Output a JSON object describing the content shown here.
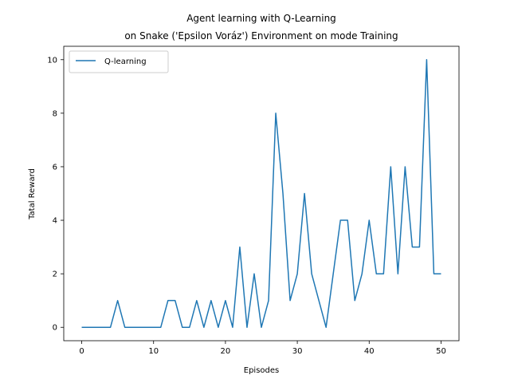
{
  "chart_data": {
    "type": "line",
    "title": "Agent learning with Q-Learning",
    "subtitle": "on Snake ('Epsilon Voráz') Environment on mode Training",
    "xlabel": "Episodes",
    "ylabel": "Tatal Reward",
    "xlim": [
      -2.5,
      52.5
    ],
    "ylim": [
      -0.5,
      10.5
    ],
    "xticks": [
      0,
      10,
      20,
      30,
      40,
      50
    ],
    "yticks": [
      0,
      2,
      4,
      6,
      8,
      10
    ],
    "grid": false,
    "legend_position": "top-left",
    "series": [
      {
        "name": "Q-learning",
        "color": "#1f77b4",
        "x": [
          0,
          1,
          2,
          3,
          4,
          5,
          6,
          7,
          8,
          9,
          10,
          11,
          12,
          13,
          14,
          15,
          16,
          17,
          18,
          19,
          20,
          21,
          22,
          23,
          24,
          25,
          26,
          27,
          28,
          29,
          30,
          31,
          32,
          33,
          34,
          35,
          36,
          37,
          38,
          39,
          40,
          41,
          42,
          43,
          44,
          45,
          46,
          47,
          48,
          49,
          50
        ],
        "values": [
          0,
          0,
          0,
          0,
          0,
          1,
          0,
          0,
          0,
          0,
          0,
          0,
          1,
          1,
          0,
          0,
          1,
          0,
          1,
          0,
          1,
          0,
          3,
          0,
          2,
          0,
          1,
          8,
          5,
          1,
          2,
          5,
          2,
          1,
          0,
          2,
          4,
          4,
          1,
          2,
          4,
          2,
          2,
          6,
          2,
          6,
          3,
          3,
          10,
          2,
          2
        ]
      }
    ]
  }
}
